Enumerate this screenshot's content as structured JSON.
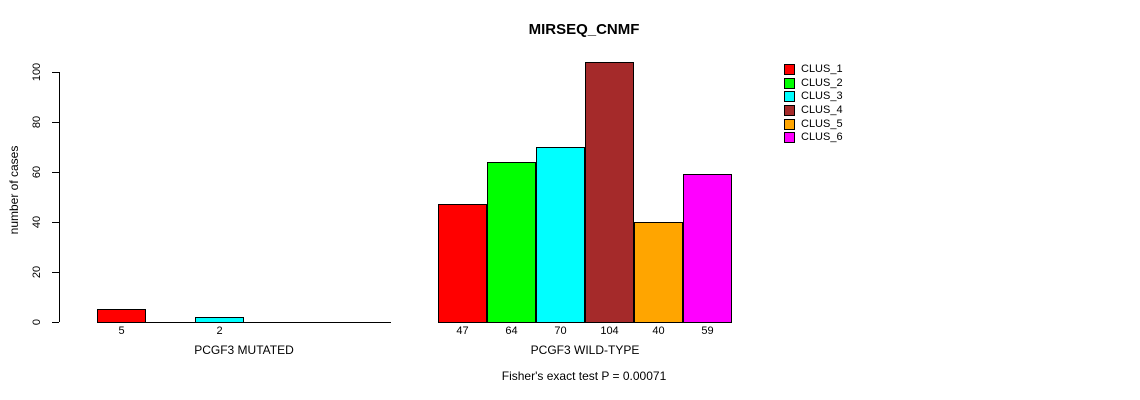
{
  "figure": {
    "background": "#FFFFFF",
    "axis_color": "#000000"
  },
  "chart_data": {
    "type": "bar",
    "title": "MIRSEQ_CNMF",
    "ylabel": "number of cases",
    "ylim": [
      0,
      100
    ],
    "yticks": [
      0,
      20,
      40,
      60,
      80,
      100
    ],
    "grid": false,
    "legend_position": "top-right",
    "categories": [
      "CLUS_1",
      "CLUS_2",
      "CLUS_3",
      "CLUS_4",
      "CLUS_5",
      "CLUS_6"
    ],
    "colors": [
      "#FF0000",
      "#00FF00",
      "#00FFFF",
      "#A52A2A",
      "#FFA500",
      "#FF00FF"
    ],
    "groups": [
      {
        "label": "PCGF3 MUTATED",
        "values": [
          5,
          0,
          2,
          0,
          0,
          0
        ],
        "bar_labels": [
          "5",
          "",
          "2",
          "",
          "",
          ""
        ]
      },
      {
        "label": "PCGF3 WILD-TYPE",
        "values": [
          47,
          64,
          70,
          104,
          40,
          59
        ],
        "bar_labels": [
          "47",
          "64",
          "70",
          "104",
          "40",
          "59"
        ]
      }
    ],
    "annotation": "Fisher's exact test P = 0.00071"
  },
  "legend": {
    "items": [
      {
        "label": "CLUS_1",
        "color": "#FF0000"
      },
      {
        "label": "CLUS_2",
        "color": "#00FF00"
      },
      {
        "label": "CLUS_3",
        "color": "#00FFFF"
      },
      {
        "label": "CLUS_4",
        "color": "#A52A2A"
      },
      {
        "label": "CLUS_5",
        "color": "#FFA500"
      },
      {
        "label": "CLUS_6",
        "color": "#FF00FF"
      }
    ]
  }
}
